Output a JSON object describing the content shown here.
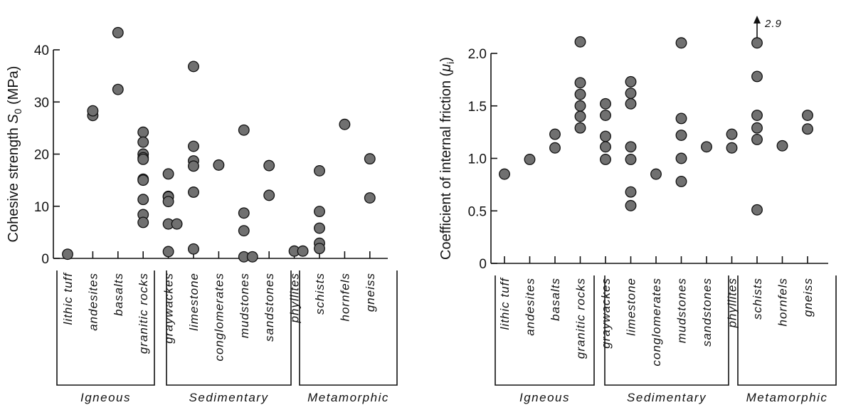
{
  "colors": {
    "marker_fill": "#707070",
    "marker_stroke": "#111111",
    "axis": "#111111"
  },
  "chart_data": [
    {
      "type": "scatter",
      "ylabel": "Cohesive strength S0 (MPa)",
      "ylabel_main": "Cohesive strength ",
      "ylabel_sym": "S",
      "ylabel_sub": "0",
      "ylabel_unit": " (MPa)",
      "ylim": [
        0,
        44
      ],
      "yticks": [
        0,
        10,
        20,
        30,
        40
      ],
      "ytick_labels": [
        "0",
        "10",
        "20",
        "30",
        "40"
      ],
      "grid": false,
      "categories": [
        "lithic tuff",
        "andesites",
        "basalts",
        "granitic rocks",
        "graywackes",
        "limestone",
        "conglomerates",
        "mudstones",
        "sandstones",
        "phyllites",
        "schists",
        "hornfels",
        "gneiss"
      ],
      "groups": [
        {
          "name": "Igneous",
          "categories": [
            "lithic tuff",
            "andesites",
            "basalts",
            "granitic rocks"
          ]
        },
        {
          "name": "Sedimentary",
          "categories": [
            "graywackes",
            "limestone",
            "conglomerates",
            "mudstones",
            "sandstones"
          ]
        },
        {
          "name": "Metamorphic",
          "categories": [
            "phyllites",
            "schists",
            "hornfels",
            "gneiss"
          ]
        }
      ],
      "points": [
        {
          "category": "lithic tuff",
          "values": [
            0.8
          ]
        },
        {
          "category": "andesites",
          "values": [
            27.4,
            28.3
          ]
        },
        {
          "category": "basalts",
          "values": [
            43.3,
            32.4
          ]
        },
        {
          "category": "granitic rocks",
          "values": [
            24.2,
            22.3,
            20.0,
            19.3,
            19.0,
            15.2,
            15.0,
            11.3,
            8.4,
            6.9
          ]
        },
        {
          "category": "graywackes",
          "values": [
            16.2,
            11.9,
            11.8,
            10.9,
            6.6,
            6.6,
            1.3
          ]
        },
        {
          "category": "limestone",
          "values": [
            36.8,
            21.5,
            18.7,
            17.7,
            12.7,
            1.8
          ]
        },
        {
          "category": "conglomerates",
          "values": [
            17.9
          ]
        },
        {
          "category": "mudstones",
          "values": [
            24.6,
            8.7,
            5.3,
            0.3,
            0.3
          ]
        },
        {
          "category": "sandstones",
          "values": [
            17.8,
            12.1
          ]
        },
        {
          "category": "phyllites",
          "values": [
            1.4,
            1.4
          ]
        },
        {
          "category": "schists",
          "values": [
            16.8,
            9.0,
            5.8,
            2.9,
            1.9
          ]
        },
        {
          "category": "hornfels",
          "values": [
            25.7
          ]
        },
        {
          "category": "gneiss",
          "values": [
            19.1,
            11.6
          ]
        }
      ]
    },
    {
      "type": "scatter",
      "ylabel": "Coefficient of internal friction (μi)",
      "ylabel_main": "Coefficient of internal friction (",
      "ylabel_sym": "μ",
      "ylabel_sub": "i",
      "ylabel_unit": ")",
      "ylim": [
        0,
        2.2
      ],
      "yticks": [
        0,
        0.5,
        1.0,
        1.5,
        2.0
      ],
      "ytick_labels": [
        "0",
        "0.5",
        "1.0",
        "1.5",
        "2.0"
      ],
      "grid": false,
      "annotation": {
        "label": "2.9",
        "category": "schists",
        "note": "off-scale value, arrow points up"
      },
      "categories": [
        "lithic tuff",
        "andesites",
        "basalts",
        "granitic rocks",
        "graywackes",
        "limestone",
        "conglomerates",
        "mudstones",
        "sandstones",
        "phyllites",
        "schists",
        "hornfels",
        "gneiss"
      ],
      "groups": [
        {
          "name": "Igneous",
          "categories": [
            "lithic tuff",
            "andesites",
            "basalts",
            "granitic rocks"
          ]
        },
        {
          "name": "Sedimentary",
          "categories": [
            "graywackes",
            "limestone",
            "conglomerates",
            "mudstones",
            "sandstones"
          ]
        },
        {
          "name": "Metamorphic",
          "categories": [
            "phyllites",
            "schists",
            "hornfels",
            "gneiss"
          ]
        }
      ],
      "points": [
        {
          "category": "lithic tuff",
          "values": [
            0.85
          ]
        },
        {
          "category": "andesites",
          "values": [
            0.99
          ]
        },
        {
          "category": "basalts",
          "values": [
            1.23,
            1.1
          ]
        },
        {
          "category": "granitic rocks",
          "values": [
            2.11,
            1.72,
            1.61,
            1.5,
            1.4,
            1.29
          ]
        },
        {
          "category": "graywackes",
          "values": [
            1.52,
            1.41,
            1.21,
            1.11,
            0.99
          ]
        },
        {
          "category": "limestone",
          "values": [
            1.73,
            1.62,
            1.52,
            1.11,
            0.99,
            0.68,
            0.55
          ]
        },
        {
          "category": "conglomerates",
          "values": [
            0.85
          ]
        },
        {
          "category": "mudstones",
          "values": [
            2.1,
            1.38,
            1.22,
            1.0,
            0.78
          ]
        },
        {
          "category": "sandstones",
          "values": [
            1.11
          ]
        },
        {
          "category": "phyllites",
          "values": [
            1.23,
            1.1
          ]
        },
        {
          "category": "schists",
          "values": [
            2.1,
            1.78,
            1.41,
            1.29,
            1.18,
            0.51
          ]
        },
        {
          "category": "hornfels",
          "values": [
            1.12
          ]
        },
        {
          "category": "gneiss",
          "values": [
            1.41,
            1.28
          ]
        }
      ]
    }
  ]
}
